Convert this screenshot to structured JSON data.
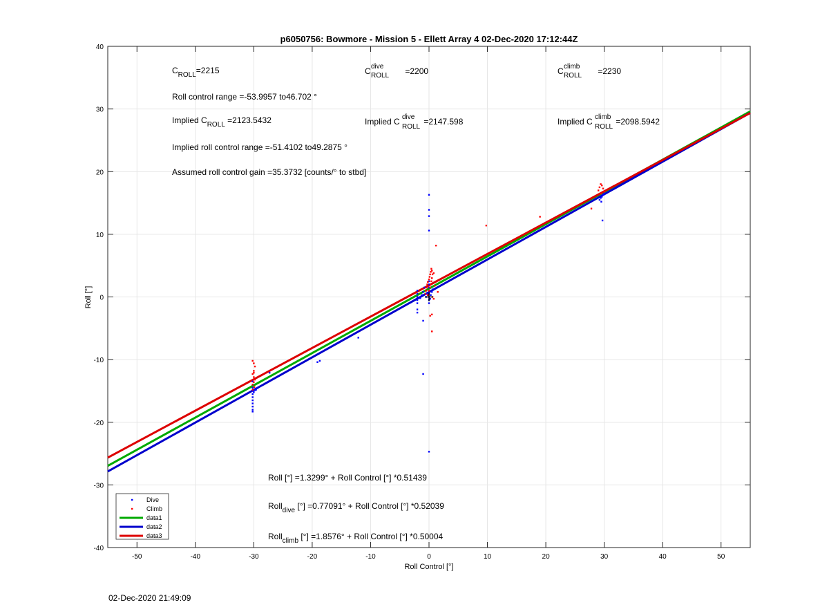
{
  "chart_data": {
    "type": "scatter",
    "title": "p6050756: Bowmore - Mission 5 - Ellett Array 4 02-Dec-2020 17:12:44Z",
    "xlabel": "Roll Control [°]",
    "ylabel": "Roll [°]",
    "xlim": [
      -55,
      55
    ],
    "ylim": [
      -40,
      40
    ],
    "xticks": [
      -50,
      -40,
      -30,
      -20,
      -10,
      0,
      10,
      20,
      30,
      40,
      50
    ],
    "yticks": [
      -40,
      -30,
      -20,
      -10,
      0,
      10,
      20,
      30,
      40
    ],
    "grid": true,
    "legend_position": "bottom-left",
    "series": [
      {
        "name": "Dive",
        "kind": "points",
        "color": "#0000ff",
        "points": [
          [
            -30.2,
            -13.5
          ],
          [
            -30.2,
            -14.0
          ],
          [
            -30.2,
            -14.5
          ],
          [
            -30.2,
            -15.0
          ],
          [
            -30.2,
            -15.5
          ],
          [
            -30.2,
            -16.0
          ],
          [
            -30.2,
            -16.5
          ],
          [
            -30.2,
            -17.0
          ],
          [
            -30.2,
            -17.5
          ],
          [
            -30.2,
            -18.0
          ],
          [
            -30.2,
            -18.3
          ],
          [
            -30.0,
            -15.2
          ],
          [
            -29.8,
            -14.9
          ],
          [
            -29.6,
            -14.8
          ],
          [
            -29.4,
            -14.6
          ],
          [
            -27.3,
            -12.1
          ],
          [
            -19.1,
            -10.4
          ],
          [
            -18.7,
            -10.2
          ],
          [
            -12.1,
            -6.5
          ],
          [
            -2.0,
            -2.0
          ],
          [
            -2.0,
            -2.5
          ],
          [
            -2.0,
            -1.0
          ],
          [
            -2.0,
            -0.5
          ],
          [
            -2.0,
            0.0
          ],
          [
            -2.0,
            0.5
          ],
          [
            -2.0,
            1.0
          ],
          [
            -1.5,
            -0.2
          ],
          [
            -1.2,
            0.3
          ],
          [
            -1.0,
            0.8
          ],
          [
            -0.8,
            1.5
          ],
          [
            -1.0,
            -3.8
          ],
          [
            -1.0,
            -12.3
          ],
          [
            -0.5,
            0.0
          ],
          [
            -0.3,
            0.5
          ],
          [
            0.0,
            -0.5
          ],
          [
            0.0,
            0.0
          ],
          [
            0.0,
            0.5
          ],
          [
            0.0,
            1.0
          ],
          [
            0.0,
            1.5
          ],
          [
            0.0,
            2.0
          ],
          [
            0.0,
            2.5
          ],
          [
            0.0,
            -1.0
          ],
          [
            0.2,
            -0.3
          ],
          [
            0.3,
            0.3
          ],
          [
            0.5,
            0.8
          ],
          [
            0.6,
            1.2
          ],
          [
            0.0,
            16.3
          ],
          [
            0.0,
            13.9
          ],
          [
            0.0,
            12.9
          ],
          [
            0.0,
            10.6
          ],
          [
            0.0,
            -24.7
          ],
          [
            29.2,
            15.5
          ],
          [
            29.4,
            15.8
          ],
          [
            29.6,
            16.0
          ],
          [
            29.8,
            16.3
          ],
          [
            30.0,
            16.5
          ],
          [
            29.5,
            15.2
          ],
          [
            29.7,
            12.2
          ]
        ]
      },
      {
        "name": "Climb",
        "kind": "points",
        "color": "#ff0000",
        "points": [
          [
            -30.2,
            -10.2
          ],
          [
            -30.0,
            -10.6
          ],
          [
            -29.8,
            -11.1
          ],
          [
            -30.0,
            -11.8
          ],
          [
            -30.2,
            -12.3
          ],
          [
            -30.0,
            -12.8
          ],
          [
            -29.8,
            -13.2
          ],
          [
            -30.0,
            -13.6
          ],
          [
            -30.2,
            -14.0
          ],
          [
            -29.9,
            -14.4
          ],
          [
            -30.2,
            -14.8
          ],
          [
            -30.0,
            -12.1
          ],
          [
            -0.6,
            0.5
          ],
          [
            -0.5,
            1.0
          ],
          [
            -0.4,
            1.5
          ],
          [
            -0.3,
            2.0
          ],
          [
            -0.2,
            2.4
          ],
          [
            0.0,
            2.8
          ],
          [
            0.1,
            3.2
          ],
          [
            0.2,
            3.6
          ],
          [
            0.3,
            4.0
          ],
          [
            0.4,
            4.5
          ],
          [
            0.5,
            4.2
          ],
          [
            0.6,
            3.6
          ],
          [
            0.5,
            3.0
          ],
          [
            0.4,
            2.5
          ],
          [
            0.3,
            2.0
          ],
          [
            0.2,
            1.5
          ],
          [
            0.0,
            1.0
          ],
          [
            -0.2,
            0.3
          ],
          [
            0.6,
            0.0
          ],
          [
            0.8,
            -0.3
          ],
          [
            0.5,
            -2.8
          ],
          [
            0.2,
            -3.0
          ],
          [
            0.5,
            -5.5
          ],
          [
            1.2,
            8.2
          ],
          [
            1.5,
            0.8
          ],
          [
            1.0,
            1.8
          ],
          [
            0.8,
            3.8
          ],
          [
            9.8,
            11.4
          ],
          [
            19.0,
            12.8
          ],
          [
            27.8,
            14.1
          ],
          [
            29.0,
            17.0
          ],
          [
            29.2,
            17.5
          ],
          [
            29.4,
            18.0
          ],
          [
            29.6,
            17.8
          ],
          [
            29.8,
            17.3
          ],
          [
            30.0,
            16.8
          ],
          [
            29.5,
            16.5
          ]
        ]
      },
      {
        "name": "data1",
        "kind": "line",
        "color": "#00aa00",
        "intercept": 1.3299,
        "slope": 0.51439
      },
      {
        "name": "data2",
        "kind": "line",
        "color": "#0000cc",
        "intercept": 0.77091,
        "slope": 0.52039
      },
      {
        "name": "data3",
        "kind": "line",
        "color": "#dd0000",
        "intercept": 1.8576,
        "slope": 0.50004
      }
    ],
    "marker": {
      "x": 0,
      "y": 0,
      "symbol": "+"
    }
  },
  "annotations": {
    "c_roll": {
      "base": "C",
      "sub": "ROLL",
      "value": "=2215"
    },
    "c_roll_dive": {
      "base": "C",
      "sup": "dive",
      "sub": "ROLL",
      "value": " =2200"
    },
    "c_roll_climb": {
      "base": "C",
      "sup": "climb",
      "sub": "ROLL",
      "value": " =2230"
    },
    "roll_control_range": "Roll control range =-53.9957 to46.702 °",
    "implied_c_roll": {
      "prefix": "Implied C",
      "sub": "ROLL",
      "value": " =2123.5432"
    },
    "implied_c_roll_dive": {
      "prefix": "Implied C",
      "sup": "dive",
      "sub": "ROLL",
      "value": " =2147.598"
    },
    "implied_c_roll_climb": {
      "prefix": "Implied C",
      "sup": "climb",
      "sub": "ROLL",
      "value": " =2098.5942"
    },
    "implied_range": "Implied roll control range =-51.4102 to49.2875 °",
    "gain": "Assumed roll control gain =35.3732 [counts/° to stbd]",
    "eq_all": "Roll [°] =1.3299° + Roll Control [°] *0.51439",
    "eq_dive": {
      "base": "Roll",
      "sub": "dive",
      "rest": " [°] =0.77091° + Roll Control [°] *0.52039"
    },
    "eq_climb": {
      "base": "Roll",
      "sub": "climb",
      "rest": " [°] =1.8576° + Roll Control [°] *0.50004"
    }
  },
  "footer_timestamp": "02-Dec-2020 21:49:09"
}
